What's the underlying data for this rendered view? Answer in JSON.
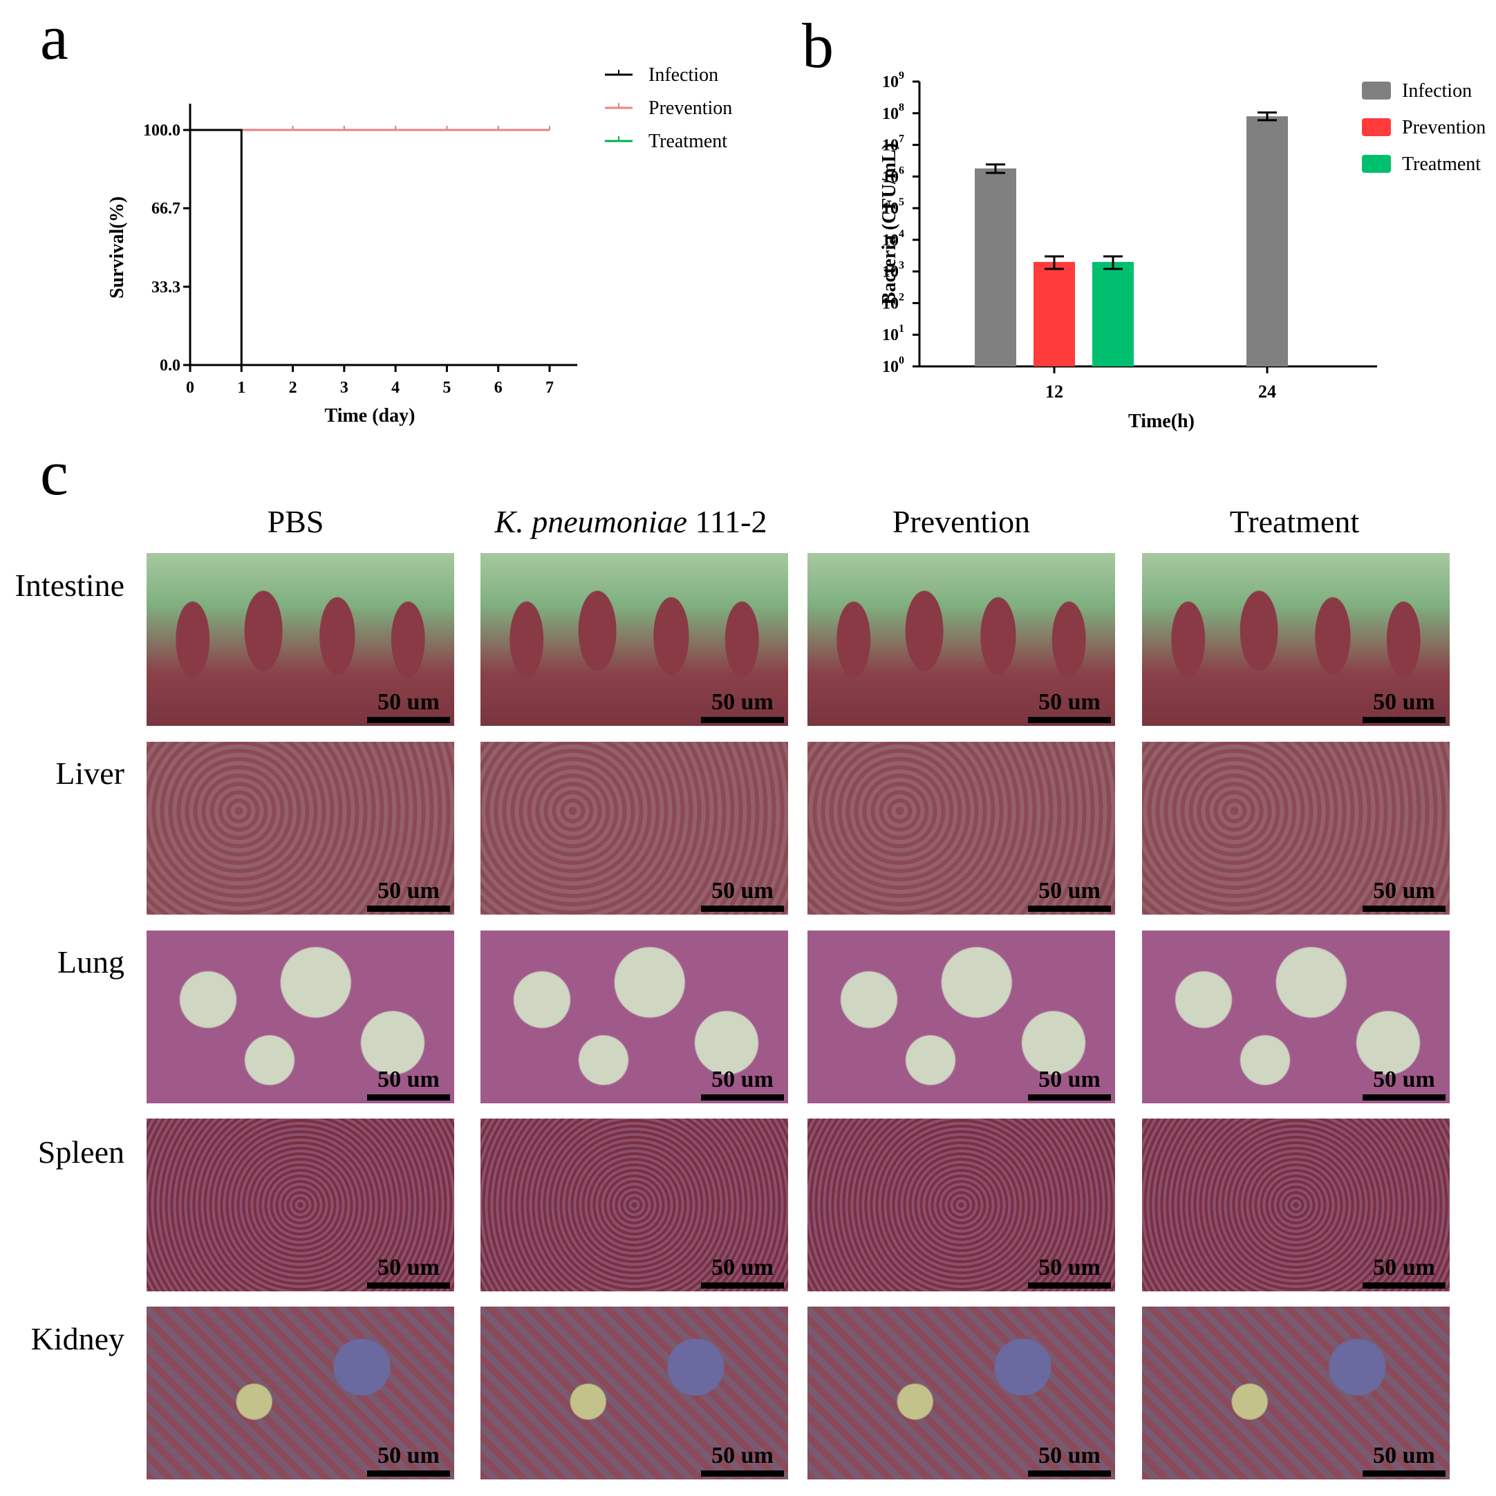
{
  "panels": {
    "a": "a",
    "b": "b",
    "c": "c"
  },
  "chart_data": [
    {
      "type": "line",
      "xlabel": "Time (day)",
      "ylabel": "Survival(%)",
      "x_ticks": [
        "0",
        "1",
        "2",
        "3",
        "4",
        "5",
        "6",
        "7"
      ],
      "y_ticks": [
        "0.0",
        "33.3",
        "66.7",
        "100.0"
      ],
      "xlim": [
        0,
        7
      ],
      "ylim": [
        0,
        100
      ],
      "legend_position": "top-right",
      "series": [
        {
          "name": "Infection",
          "color": "#000000",
          "x": [
            0,
            1,
            1
          ],
          "y": [
            100,
            100,
            0
          ]
        },
        {
          "name": "Prevention",
          "color": "#f08080",
          "x": [
            0,
            1,
            2,
            3,
            4,
            5,
            6,
            7
          ],
          "y": [
            100,
            100,
            100,
            100,
            100,
            100,
            100,
            100
          ]
        },
        {
          "name": "Treatment",
          "color": "#00b050",
          "x": [
            0,
            1,
            2,
            3,
            4,
            5,
            6,
            7
          ],
          "y": [
            100,
            100,
            100,
            100,
            100,
            100,
            100,
            100
          ]
        }
      ]
    },
    {
      "type": "bar",
      "xlabel": "Time(h)",
      "ylabel": "Bacteria (CFU/mL)",
      "categories": [
        "12",
        "24"
      ],
      "y_scale": "log",
      "ylim": [
        1,
        1000000000
      ],
      "y_tick_exponents": [
        "0",
        "1",
        "2",
        "3",
        "4",
        "5",
        "6",
        "7",
        "8",
        "9"
      ],
      "y_tick_base": "10",
      "legend_position": "top-right",
      "series": [
        {
          "name": "Infection",
          "color": "#808080",
          "values": [
            1800000,
            80000000
          ],
          "err_low": [
            1300000,
            60000000
          ],
          "err_high": [
            2400000,
            105000000
          ]
        },
        {
          "name": "Prevention",
          "color": "#ff3b3b",
          "values": [
            2000,
            null
          ],
          "err_low": [
            1200,
            null
          ],
          "err_high": [
            3000,
            null
          ]
        },
        {
          "name": "Treatment",
          "color": "#00c070",
          "values": [
            2000,
            null
          ],
          "err_low": [
            1200,
            null
          ],
          "err_high": [
            3000,
            null
          ]
        }
      ]
    }
  ],
  "histology": {
    "columns": [
      "PBS",
      "K. pneumoniae",
      "111-2",
      "Prevention",
      "Treatment"
    ],
    "rows": [
      "Intestine",
      "Liver",
      "Lung",
      "Spleen",
      "Kidney"
    ],
    "scale_label": "50 um"
  }
}
